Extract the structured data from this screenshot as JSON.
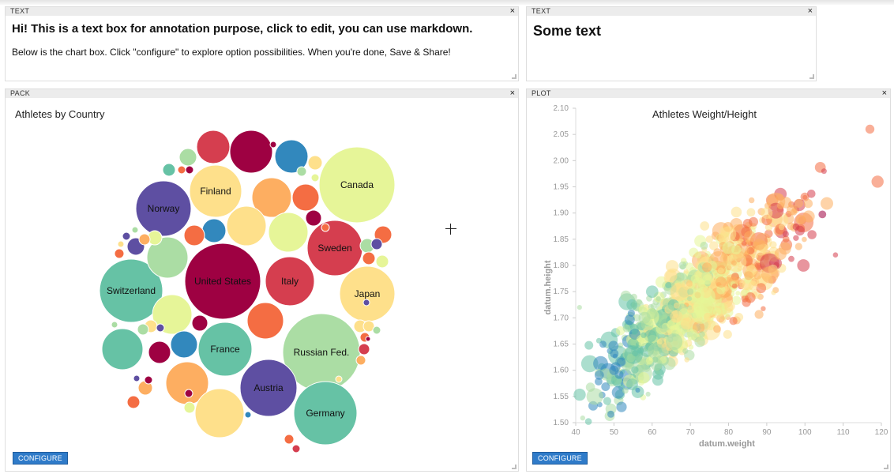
{
  "panels": {
    "text1": {
      "header": "TEXT",
      "title": "Hi! This is a text box for annotation purpose, click to edit, you can use markdown.",
      "body": "Below is the chart box. Click \"configure\" to explore option possibilities. When you're done, Save & Share!"
    },
    "text2": {
      "header": "TEXT",
      "title": "Some text"
    },
    "pack": {
      "header": "PACK",
      "title": "Athletes by Country",
      "configure": "CONFIGURE"
    },
    "plot": {
      "header": "PLOT",
      "title": "Athletes Weight/Height",
      "configure": "CONFIGURE"
    }
  },
  "close_glyph": "×",
  "chart_data": [
    {
      "type": "bubble-pack",
      "title": "Athletes by Country",
      "labeled_countries": [
        "United States",
        "Russian Fed.",
        "Canada",
        "Switzerland",
        "Germany",
        "Austria",
        "Sweden",
        "Japan",
        "Italy",
        "France",
        "Finland",
        "Norway"
      ],
      "palette": [
        "#9e0142",
        "#d53e4f",
        "#f46d43",
        "#fdae61",
        "#fee08b",
        "#e6f598",
        "#abdda4",
        "#66c2a5",
        "#3288bd",
        "#5e4fa2"
      ]
    },
    {
      "type": "scatter",
      "title": "Athletes Weight/Height",
      "xlabel": "datum.weight",
      "ylabel": "datum.height",
      "xlim": [
        40,
        120
      ],
      "ylim": [
        1.5,
        2.1
      ],
      "xticks": [
        40,
        50,
        60,
        70,
        80,
        90,
        100,
        110,
        120
      ],
      "yticks": [
        1.5,
        1.55,
        1.6,
        1.65,
        1.7,
        1.75,
        1.8,
        1.85,
        1.9,
        1.95,
        2.0,
        2.05,
        2.1
      ],
      "ytick_labels": [
        "1.50",
        "1.55",
        "1.60",
        "1.65",
        "1.70",
        "1.75",
        "1.80",
        "1.85",
        "1.90",
        "1.95",
        "2.00",
        "2.05",
        "2.10"
      ],
      "grid": false,
      "points_sample": [
        {
          "x": 41,
          "y": 1.72
        },
        {
          "x": 45,
          "y": 1.55
        },
        {
          "x": 50,
          "y": 1.6
        },
        {
          "x": 52,
          "y": 1.53
        },
        {
          "x": 55,
          "y": 1.65
        },
        {
          "x": 58,
          "y": 1.7
        },
        {
          "x": 60,
          "y": 1.75
        },
        {
          "x": 63,
          "y": 1.68
        },
        {
          "x": 65,
          "y": 1.78
        },
        {
          "x": 68,
          "y": 1.8
        },
        {
          "x": 70,
          "y": 1.75
        },
        {
          "x": 72,
          "y": 1.82
        },
        {
          "x": 75,
          "y": 1.85
        },
        {
          "x": 78,
          "y": 1.79
        },
        {
          "x": 80,
          "y": 1.86
        },
        {
          "x": 82,
          "y": 1.83
        },
        {
          "x": 85,
          "y": 1.88
        },
        {
          "x": 88,
          "y": 1.84
        },
        {
          "x": 90,
          "y": 1.9
        },
        {
          "x": 95,
          "y": 1.92
        },
        {
          "x": 100,
          "y": 1.93
        },
        {
          "x": 105,
          "y": 1.98
        },
        {
          "x": 108,
          "y": 1.82
        },
        {
          "x": 117,
          "y": 2.06
        },
        {
          "x": 119,
          "y": 1.96
        }
      ]
    }
  ]
}
